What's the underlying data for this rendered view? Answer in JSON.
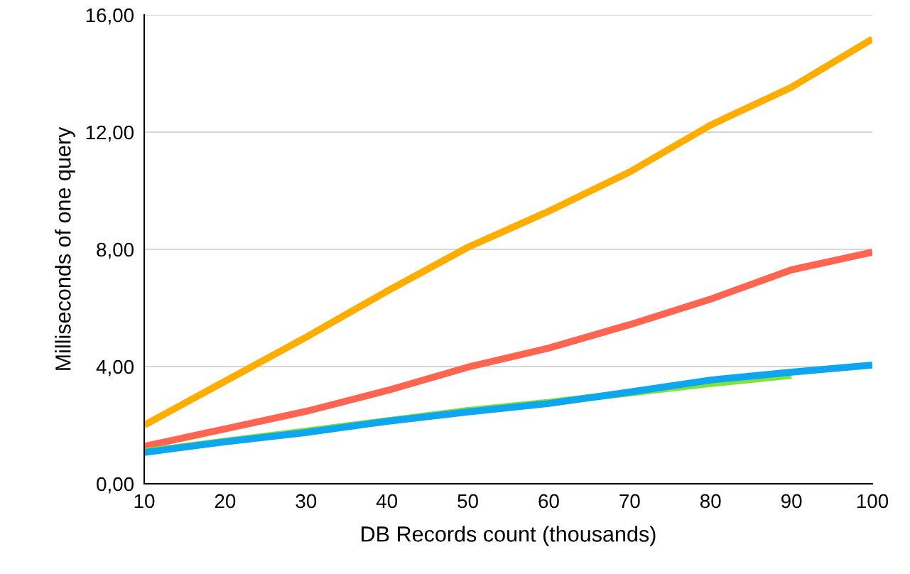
{
  "chart_data": {
    "type": "line",
    "xlabel": "DB Records count (thousands)",
    "ylabel": "Milliseconds of one query",
    "x": [
      10,
      20,
      30,
      40,
      50,
      60,
      70,
      80,
      90,
      100
    ],
    "series": [
      {
        "color": "#ffae00",
        "values": [
          2.0,
          3.5,
          5.0,
          6.57,
          8.07,
          9.3,
          10.64,
          12.24,
          13.53,
          15.18
        ]
      },
      {
        "color": "#ff6550",
        "values": [
          1.28,
          1.87,
          2.47,
          3.18,
          3.98,
          4.63,
          5.43,
          6.3,
          7.3,
          7.9
        ]
      },
      {
        "color": "#7ee33a",
        "values": [
          1.1,
          1.45,
          1.8,
          2.15,
          2.5,
          2.78,
          3.1,
          3.42,
          3.7,
          null
        ]
      },
      {
        "color": "#0fa6f0",
        "values": [
          1.07,
          1.43,
          1.75,
          2.13,
          2.45,
          2.74,
          3.13,
          3.54,
          3.81,
          4.05
        ]
      }
    ],
    "xlim": [
      10,
      100
    ],
    "xticks": [
      10,
      20,
      30,
      40,
      50,
      60,
      70,
      80,
      90,
      100
    ],
    "ylim": [
      0,
      16
    ],
    "yticks": [
      {
        "value": 0,
        "label": "0,00"
      },
      {
        "value": 4,
        "label": "4,00"
      },
      {
        "value": 8,
        "label": "8,00"
      },
      {
        "value": 12,
        "label": "12,00"
      },
      {
        "value": 16,
        "label": "16,00"
      }
    ],
    "grid": "y",
    "marker": "none",
    "line_style": "solid"
  }
}
